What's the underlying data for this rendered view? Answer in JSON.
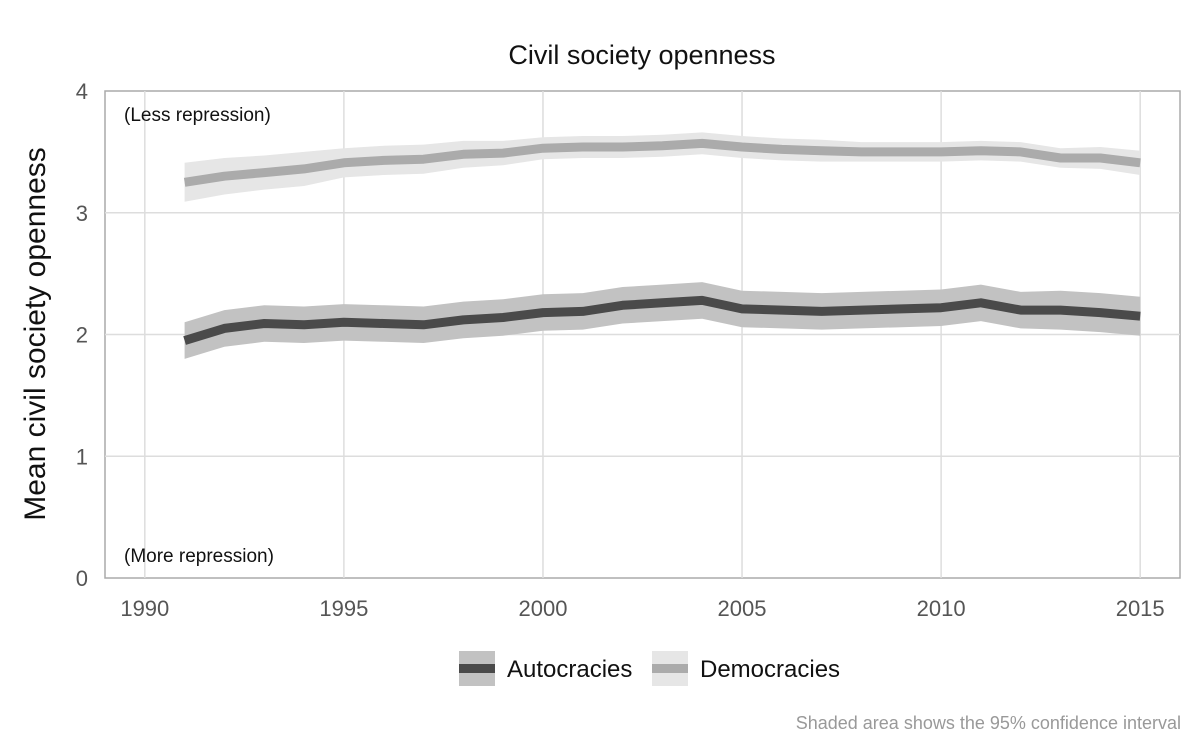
{
  "chart_data": {
    "type": "line",
    "title": "Civil society openness",
    "ylabel": "Mean civil society openness",
    "xlabel": "",
    "xlim": [
      1989,
      2016
    ],
    "ylim": [
      0,
      4
    ],
    "x_ticks": [
      1990,
      1995,
      2000,
      2005,
      2010,
      2015
    ],
    "y_ticks": [
      0,
      1,
      2,
      3,
      4
    ],
    "grid": true,
    "legend_position": "bottom",
    "annotations": {
      "top": "(Less repression)",
      "bottom": "(More repression)"
    },
    "caption": "Shaded area shows the 95% confidence interval",
    "x": [
      1991,
      1992,
      1993,
      1994,
      1995,
      1996,
      1997,
      1998,
      1999,
      2000,
      2001,
      2002,
      2003,
      2004,
      2005,
      2006,
      2007,
      2008,
      2009,
      2010,
      2011,
      2012,
      2013,
      2014,
      2015
    ],
    "series": [
      {
        "name": "Autocracies",
        "color": "#4a4a4a",
        "band_color": "#c2c2c2",
        "values": [
          1.95,
          2.05,
          2.09,
          2.08,
          2.1,
          2.09,
          2.08,
          2.12,
          2.14,
          2.18,
          2.19,
          2.24,
          2.26,
          2.28,
          2.21,
          2.2,
          2.19,
          2.2,
          2.21,
          2.22,
          2.26,
          2.2,
          2.2,
          2.18,
          2.15
        ],
        "lower": [
          1.8,
          1.9,
          1.94,
          1.93,
          1.95,
          1.94,
          1.93,
          1.97,
          1.99,
          2.03,
          2.04,
          2.09,
          2.11,
          2.13,
          2.06,
          2.05,
          2.04,
          2.05,
          2.06,
          2.07,
          2.11,
          2.05,
          2.04,
          2.02,
          1.99
        ],
        "upper": [
          2.1,
          2.2,
          2.24,
          2.23,
          2.25,
          2.24,
          2.23,
          2.27,
          2.29,
          2.33,
          2.34,
          2.39,
          2.41,
          2.43,
          2.36,
          2.35,
          2.34,
          2.35,
          2.36,
          2.37,
          2.41,
          2.35,
          2.36,
          2.34,
          2.31
        ]
      },
      {
        "name": "Democracies",
        "color": "#ababab",
        "band_color": "#e6e6e6",
        "values": [
          3.25,
          3.3,
          3.33,
          3.36,
          3.41,
          3.43,
          3.44,
          3.48,
          3.49,
          3.53,
          3.54,
          3.54,
          3.55,
          3.57,
          3.54,
          3.52,
          3.51,
          3.5,
          3.5,
          3.5,
          3.51,
          3.5,
          3.45,
          3.45,
          3.41
        ],
        "lower": [
          3.09,
          3.15,
          3.19,
          3.22,
          3.29,
          3.31,
          3.32,
          3.37,
          3.39,
          3.44,
          3.45,
          3.45,
          3.46,
          3.48,
          3.45,
          3.43,
          3.42,
          3.42,
          3.42,
          3.42,
          3.43,
          3.42,
          3.37,
          3.36,
          3.31
        ],
        "upper": [
          3.41,
          3.45,
          3.47,
          3.5,
          3.53,
          3.55,
          3.56,
          3.59,
          3.59,
          3.62,
          3.63,
          3.63,
          3.64,
          3.66,
          3.63,
          3.61,
          3.6,
          3.58,
          3.58,
          3.58,
          3.59,
          3.58,
          3.53,
          3.54,
          3.51
        ]
      }
    ]
  }
}
